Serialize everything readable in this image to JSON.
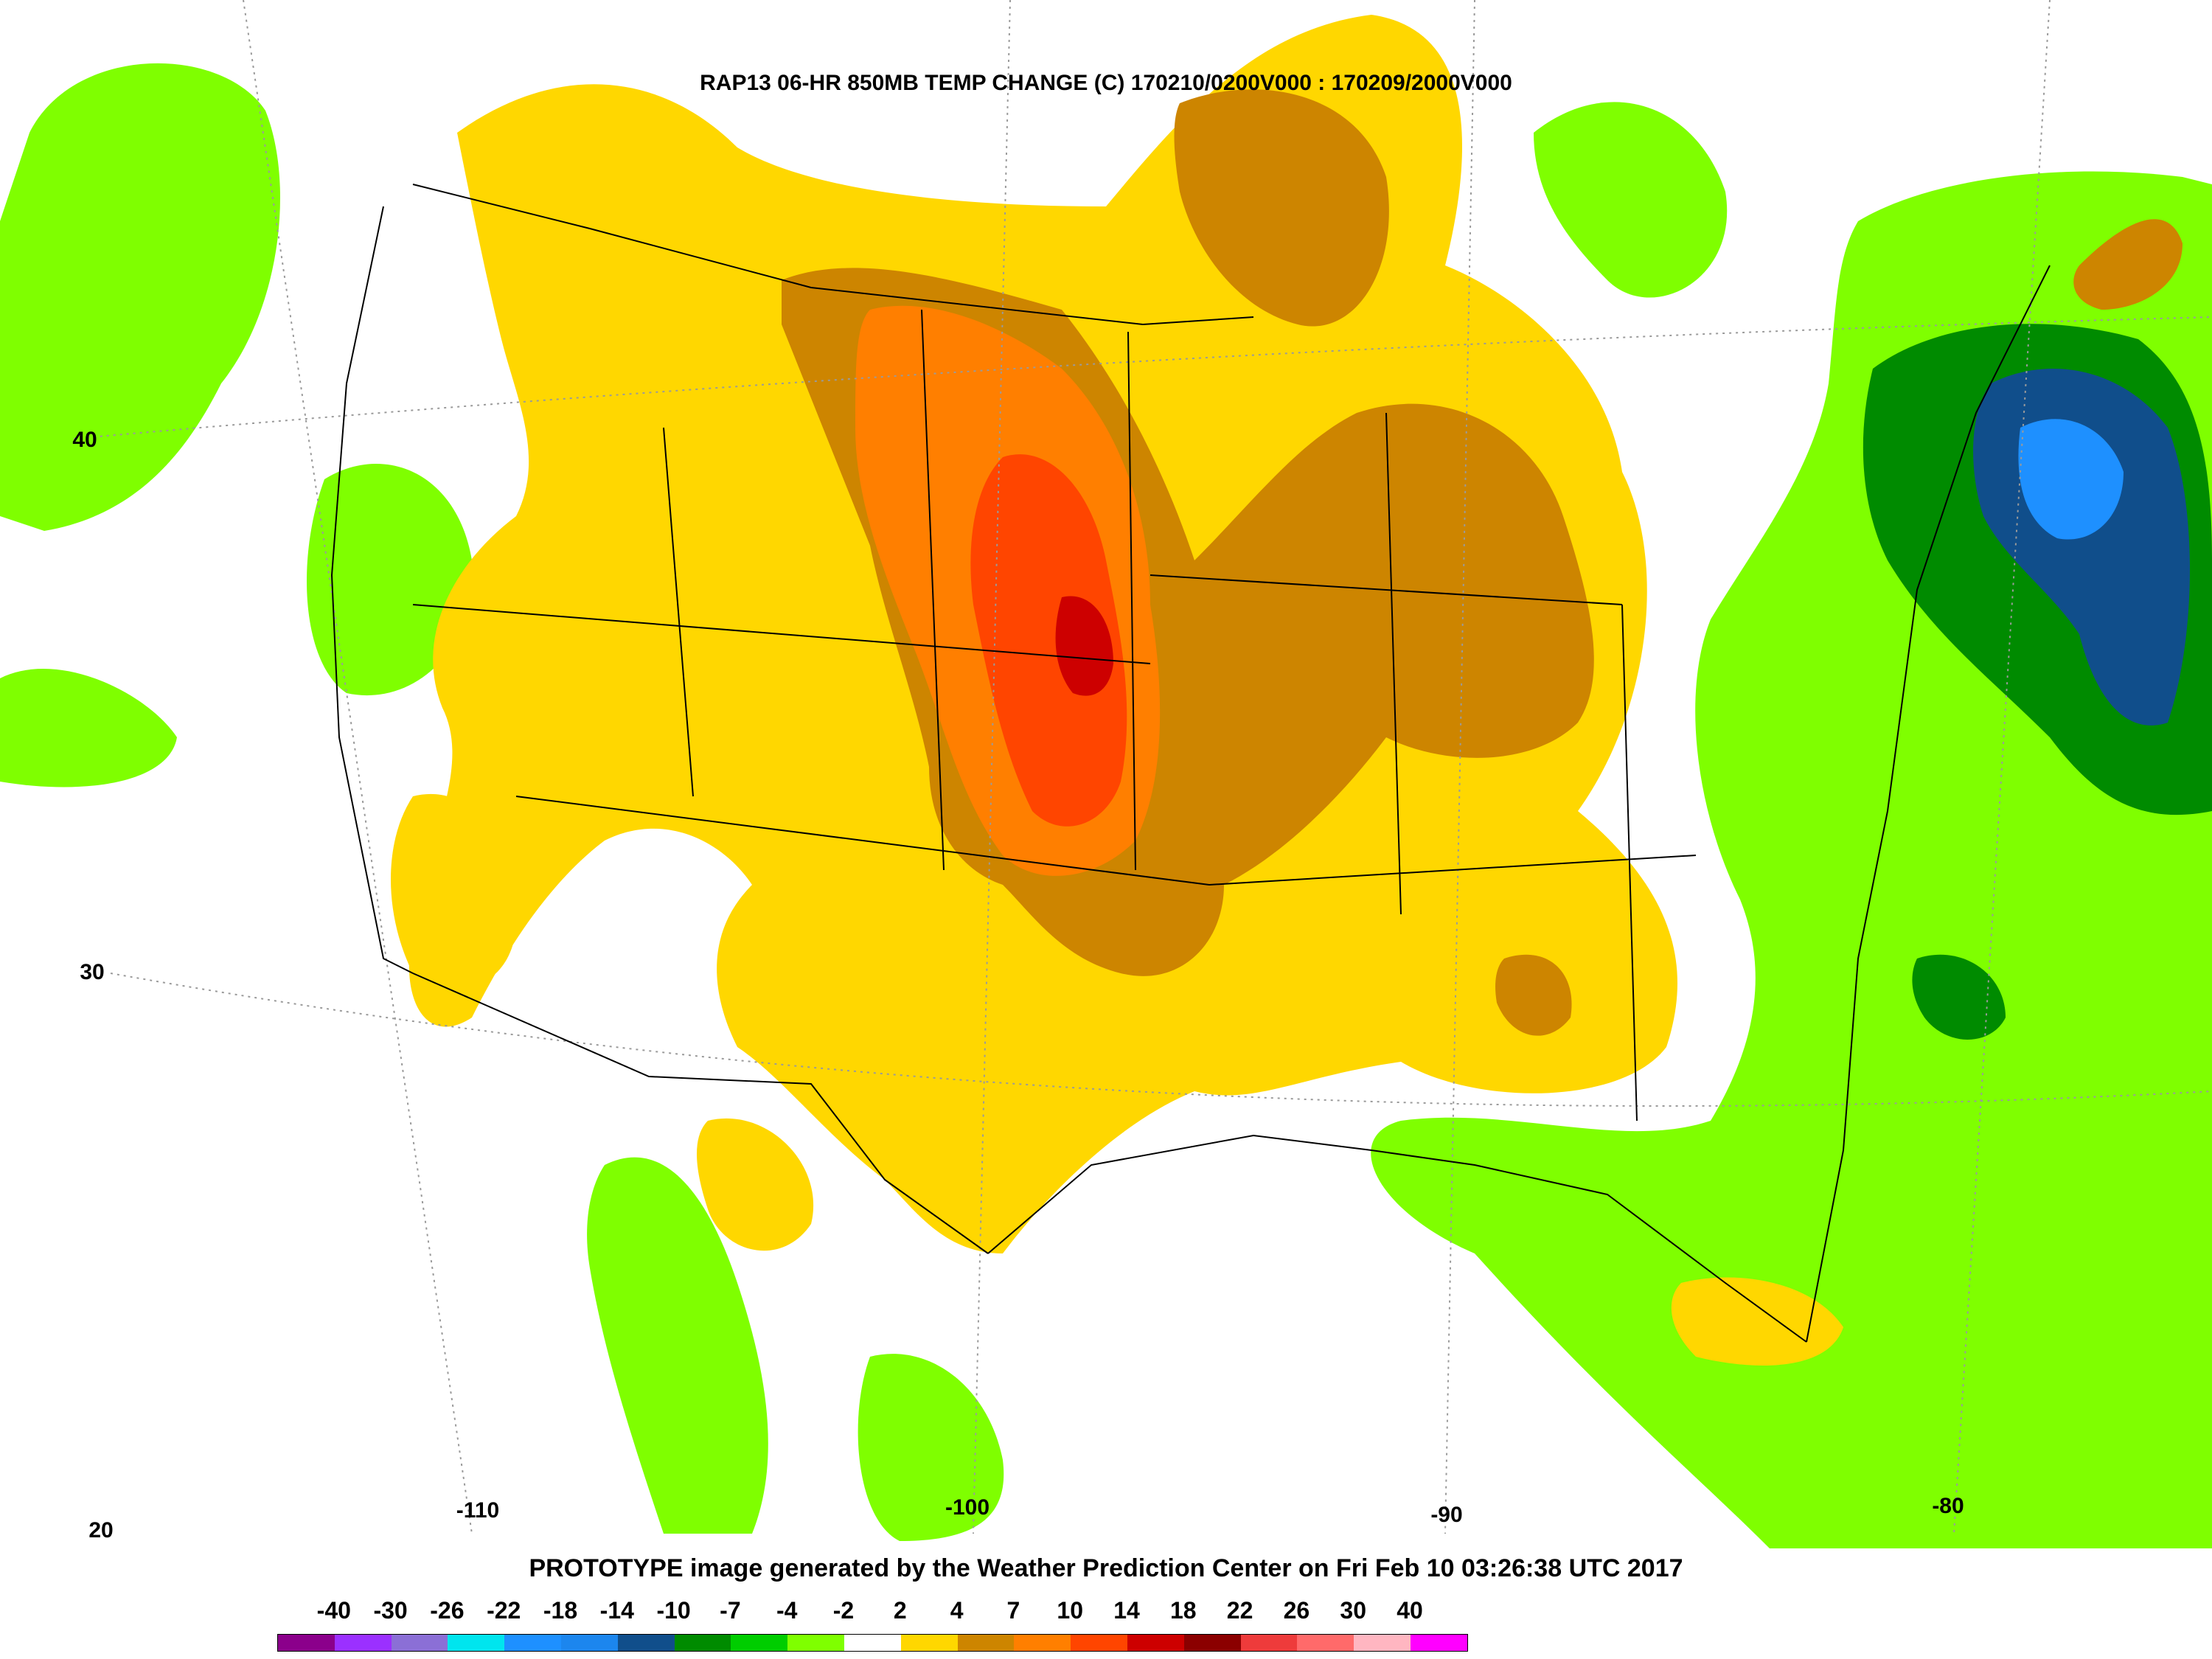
{
  "title": "RAP13 06-HR 850MB TEMP CHANGE (C) 170210/0200V000 : 170209/2000V000",
  "footer": "PROTOTYPE image generated by the Weather Prediction Center on Fri Feb 10 03:26:38 UTC 2017",
  "lat_labels": [
    "40",
    "30",
    "20"
  ],
  "lon_labels": [
    "-110",
    "-100",
    "-90",
    "-80"
  ],
  "legend": {
    "labels": [
      "-40",
      "-30",
      "-26",
      "-22",
      "-18",
      "-14",
      "-10",
      "-7",
      "-4",
      "-2",
      "2",
      "4",
      "7",
      "10",
      "14",
      "18",
      "22",
      "26",
      "30",
      "40"
    ],
    "colors": [
      "#8b008b",
      "#9b30ff",
      "#8b6fd6",
      "#00e5ee",
      "#1e90ff",
      "#1c86ee",
      "#104e8b",
      "#008b00",
      "#00cd00",
      "#7fff00",
      "#ffffff",
      "#ffd700",
      "#cd8500",
      "#ff7f00",
      "#ff4500",
      "#cd0000",
      "#8b0000",
      "#ee3b3b",
      "#ff6a6a",
      "#ffb6c1",
      "#ff00ff"
    ]
  },
  "regions": {
    "green": "#7fff00",
    "mid_green": "#00cd00",
    "dark_green": "#008b00",
    "dark_blue": "#104e8b",
    "light_blue": "#1e90ff",
    "gold": "#ffd700",
    "brown": "#cd8500",
    "orange": "#ff7f00",
    "red_orange": "#ff4500",
    "red": "#cd0000"
  }
}
